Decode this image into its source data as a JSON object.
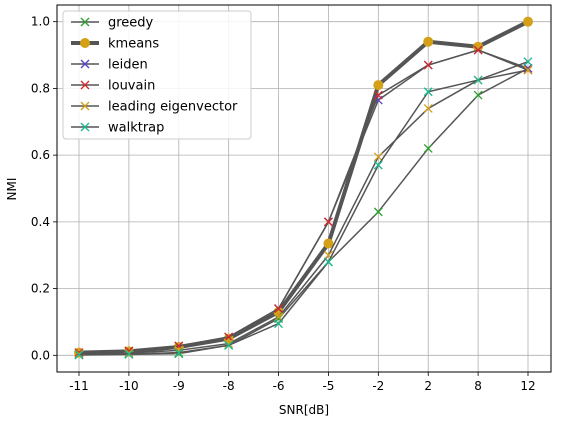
{
  "chart_data": {
    "type": "line",
    "xlabel": "SNR[dB]",
    "ylabel": "NMI",
    "categories": [
      "-11",
      "-10",
      "-9",
      "-8",
      "-6",
      "-5",
      "-2",
      "2",
      "8",
      "12"
    ],
    "ylim": [
      -0.05,
      1.05
    ],
    "yticks": [
      "0.0",
      "0.2",
      "0.4",
      "0.6",
      "0.8",
      "1.0"
    ],
    "grid": true,
    "legend_position": "top-left",
    "line_color": "#555555",
    "series": [
      {
        "name": "greedy",
        "marker": "x",
        "marker_color": "#2ca02c",
        "line_width": 1.5,
        "values": [
          0.001,
          0.003,
          0.005,
          0.03,
          0.11,
          0.28,
          0.43,
          0.62,
          0.78,
          0.86
        ]
      },
      {
        "name": "kmeans",
        "marker": "o",
        "marker_color": "#d4a017",
        "line_width": 4,
        "values": [
          0.008,
          0.012,
          0.025,
          0.05,
          0.13,
          0.335,
          0.81,
          0.94,
          0.925,
          1.0
        ]
      },
      {
        "name": "leiden",
        "marker": "x",
        "marker_color": "#5b3fc4",
        "line_width": 1.5,
        "values": [
          0.008,
          0.013,
          0.028,
          0.055,
          0.14,
          0.4,
          0.765,
          0.87,
          0.915,
          0.86
        ]
      },
      {
        "name": "louvain",
        "marker": "x",
        "marker_color": "#d62728",
        "line_width": 1.5,
        "values": [
          0.008,
          0.013,
          0.028,
          0.055,
          0.14,
          0.4,
          0.78,
          0.87,
          0.915,
          0.855
        ]
      },
      {
        "name": "leading eigenvector",
        "marker": "x",
        "marker_color": "#d4a017",
        "line_width": 1.5,
        "values": [
          0.004,
          0.007,
          0.015,
          0.035,
          0.115,
          0.3,
          0.595,
          0.74,
          0.825,
          0.855
        ]
      },
      {
        "name": "walktrap",
        "marker": "x",
        "marker_color": "#17b890",
        "line_width": 1.5,
        "values": [
          0.002,
          0.004,
          0.008,
          0.03,
          0.095,
          0.28,
          0.57,
          0.79,
          0.825,
          0.88
        ]
      }
    ]
  }
}
